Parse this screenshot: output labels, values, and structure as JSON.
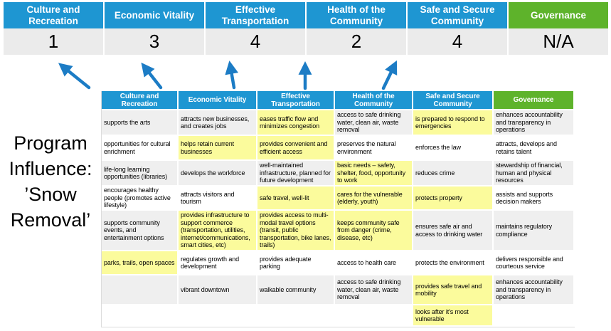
{
  "palette": {
    "blue": "#1E96D2",
    "green": "#5EB32B",
    "yellow": "#FBFB9C",
    "band": "#EFEFEF",
    "scorebg": "#EBEBEB",
    "arrow": "#1C7CC5",
    "ink": "#000000"
  },
  "score_table": {
    "columns": [
      {
        "label": "Culture and Recreation",
        "score": "1",
        "theme": "blue"
      },
      {
        "label": "Economic Vitality",
        "score": "3",
        "theme": "blue"
      },
      {
        "label": "Effective Transportation",
        "score": "4",
        "theme": "blue"
      },
      {
        "label": "Health of the Community",
        "score": "2",
        "theme": "blue"
      },
      {
        "label": "Safe and Secure Community",
        "score": "4",
        "theme": "blue"
      },
      {
        "label": "Governance",
        "score": "N/A",
        "theme": "green"
      }
    ]
  },
  "program_label": {
    "lines": [
      "Program",
      "Influence:",
      "’Snow",
      "Removal’"
    ]
  },
  "matrix": {
    "headers": [
      {
        "label": "Culture and Recreation",
        "theme": "blue"
      },
      {
        "label": "Economic Vitality",
        "theme": "blue"
      },
      {
        "label": "Effective Transportation",
        "theme": "blue"
      },
      {
        "label": "Health of the Community",
        "theme": "blue"
      },
      {
        "label": "Safe and Secure Community",
        "theme": "blue"
      },
      {
        "label": "Governance",
        "theme": "green"
      }
    ],
    "rows": [
      [
        {
          "t": "supports the arts",
          "h": false
        },
        {
          "t": "attracts new businesses, and creates jobs",
          "h": false
        },
        {
          "t": "eases traffic flow and minimizes congestion",
          "h": true
        },
        {
          "t": "access to safe drinking water, clean air, waste removal",
          "h": false
        },
        {
          "t": "is prepared to respond to emergencies",
          "h": true
        },
        {
          "t": "enhances accountability and transparency in operations",
          "h": false
        }
      ],
      [
        {
          "t": "opportunities for cultural enrichment",
          "h": false
        },
        {
          "t": "helps retain current businesses",
          "h": true
        },
        {
          "t": "provides convenient and efficient access",
          "h": true
        },
        {
          "t": "preserves the natural environment",
          "h": false
        },
        {
          "t": "enforces the law",
          "h": false
        },
        {
          "t": "attracts, develops and retains talent",
          "h": false
        }
      ],
      [
        {
          "t": "life-long learning opportunities (libraries)",
          "h": false
        },
        {
          "t": "develops the workforce",
          "h": false
        },
        {
          "t": "well-maintained infrastructure, planned for future development",
          "h": false
        },
        {
          "t": "basic needs – safety, shelter, food, opportunity to work",
          "h": true
        },
        {
          "t": "reduces crime",
          "h": false
        },
        {
          "t": "stewardship of financial, human and physical resources",
          "h": false
        }
      ],
      [
        {
          "t": "encourages healthy people (promotes active lifestyle)",
          "h": false
        },
        {
          "t": "attracts visitors and tourism",
          "h": false
        },
        {
          "t": "safe travel, well-lit",
          "h": true
        },
        {
          "t": "cares for the vulnerable (elderly, youth)",
          "h": true
        },
        {
          "t": "protects property",
          "h": true
        },
        {
          "t": "assists and supports decision makers",
          "h": false
        }
      ],
      [
        {
          "t": "supports community events, and entertainment options",
          "h": false
        },
        {
          "t": "provides infrastructure to support commerce (transportation, utilities, internet/communications, smart cities, etc)",
          "h": true
        },
        {
          "t": "provides access to multi-modal travel options (transit, public transportation, bike lanes, trails)",
          "h": true
        },
        {
          "t": "keeps community safe from danger (crime, disease, etc)",
          "h": true
        },
        {
          "t": "ensures safe air and access to drinking water",
          "h": false
        },
        {
          "t": "maintains regulatory compliance",
          "h": false
        }
      ],
      [
        {
          "t": "parks, trails, open spaces",
          "h": true
        },
        {
          "t": "regulates growth and development",
          "h": false
        },
        {
          "t": "provides adequate parking",
          "h": false
        },
        {
          "t": "access to health care",
          "h": false
        },
        {
          "t": "protects the environment",
          "h": false
        },
        {
          "t": "delivers responsible and courteous service",
          "h": false
        }
      ],
      [
        {
          "t": "",
          "h": false
        },
        {
          "t": "vibrant downtown",
          "h": false
        },
        {
          "t": "walkable community",
          "h": false
        },
        {
          "t": "access to safe drinking water, clean air, waste removal",
          "h": false
        },
        {
          "t": "provides safe travel and mobility",
          "h": true
        },
        {
          "t": "enhances accountability and transparency in operations",
          "h": false
        }
      ],
      [
        {
          "t": "",
          "h": false
        },
        {
          "t": "",
          "h": false
        },
        {
          "t": "",
          "h": false
        },
        {
          "t": "",
          "h": false
        },
        {
          "t": "looks after it's most vulnerable",
          "h": true
        },
        {
          "t": "",
          "h": false
        }
      ]
    ]
  }
}
